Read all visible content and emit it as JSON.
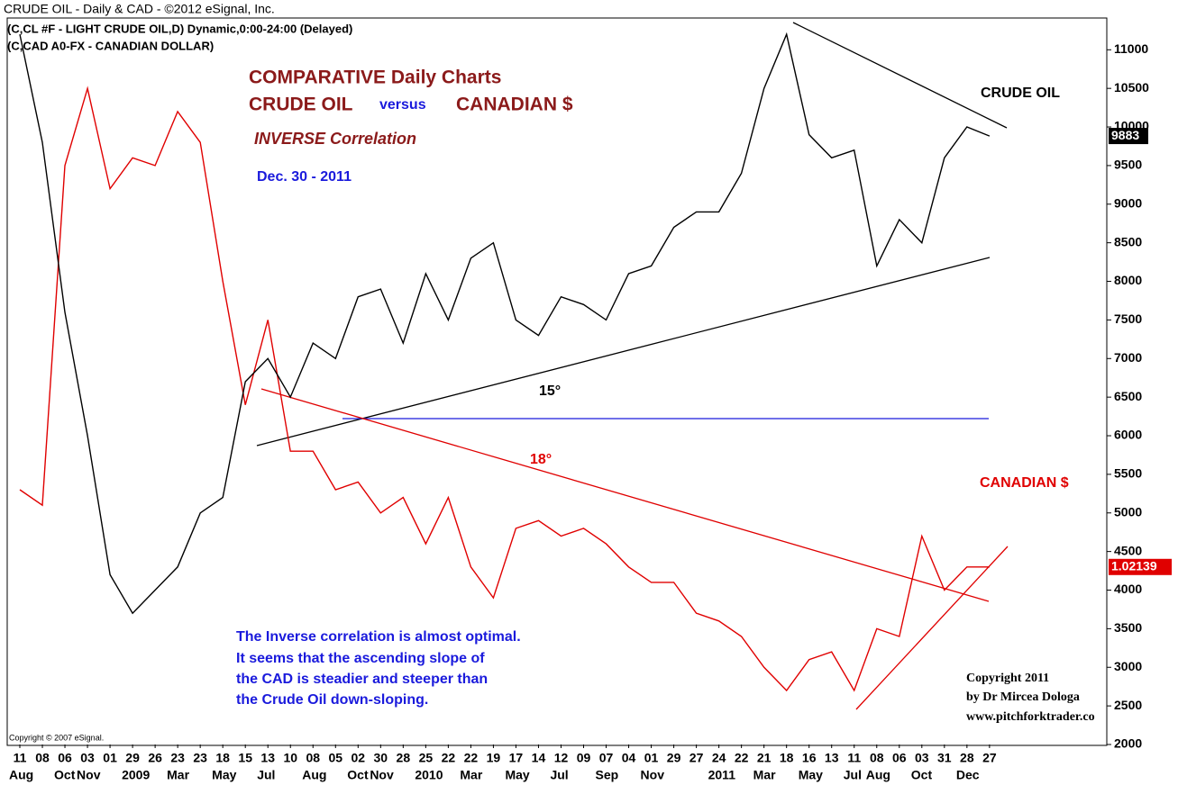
{
  "chart_data": {
    "type": "line",
    "title": "CRUDE OIL - Daily & CAD - ©2012 eSignal, Inc.",
    "subtitles": [
      "(C,CL #F - LIGHT CRUDE OIL,D) Dynamic,0:00-24:00 (Delayed)",
      "(C,CAD A0-FX - CANADIAN DOLLAR)"
    ],
    "annotations": {
      "headline": "COMPARATIVE Daily Charts",
      "headline_left": "CRUDE OIL",
      "headline_mid": "versus",
      "headline_right": "CANADIAN $",
      "correlation": "INVERSE Correlation",
      "date": "Dec. 30 - 2011",
      "angle_oil": "15°",
      "angle_cad": "18°",
      "note": [
        "The Inverse correlation is almost optimal.",
        "It seems that the ascending slope of",
        "the CAD is steadier and steeper  than",
        "the Crude Oil down-sloping."
      ],
      "author": [
        "Copyright 2011",
        "by Dr Mircea Dologa",
        "www.pitchforktrader.co"
      ],
      "vendor": "Copyright © 2007 eSignal."
    },
    "categories": [
      "11",
      "08",
      "06",
      "03",
      "01",
      "29",
      "26",
      "23",
      "23",
      "18",
      "15",
      "13",
      "10",
      "08",
      "05",
      "02",
      "30",
      "28",
      "25",
      "22",
      "22",
      "19",
      "17",
      "14",
      "12",
      "09",
      "07",
      "04",
      "01",
      "29",
      "27",
      "24",
      "22",
      "21",
      "18",
      "16",
      "13",
      "11",
      "08",
      "06",
      "03",
      "31",
      "28",
      "27"
    ],
    "category_groups": [
      "Aug",
      null,
      "Oct",
      "Nov",
      null,
      "2009",
      null,
      "Mar",
      null,
      "May",
      null,
      "Jul",
      null,
      "Aug",
      null,
      "Oct",
      "Nov",
      null,
      "2010",
      null,
      "Mar",
      null,
      "May",
      null,
      "Jul",
      null,
      "Sep",
      null,
      "Nov",
      null,
      null,
      "2011",
      null,
      "Mar",
      null,
      "May",
      null,
      "Jul",
      "Aug",
      null,
      "Oct",
      null,
      "Dec",
      null
    ],
    "series": [
      {
        "name": "CRUDE OIL",
        "color": "#000000",
        "last_label": "9883",
        "values": [
          11200,
          9800,
          7600,
          6000,
          4200,
          3700,
          4000,
          4300,
          5000,
          5200,
          6700,
          7000,
          6500,
          7200,
          7000,
          7800,
          7900,
          7200,
          8100,
          7500,
          8300,
          8500,
          7500,
          7300,
          7800,
          7700,
          7500,
          8100,
          8200,
          8700,
          8900,
          8900,
          9400,
          10500,
          11200,
          9900,
          9600,
          9700,
          8200,
          8800,
          8500,
          9600,
          10000,
          9883
        ]
      },
      {
        "name": "CANADIAN $",
        "color": "#e00000",
        "last_label": "1.02139",
        "values": [
          5300,
          5100,
          9500,
          10500,
          9200,
          9600,
          9500,
          10200,
          9800,
          8000,
          6400,
          7500,
          5800,
          5800,
          5300,
          5400,
          5000,
          5200,
          4600,
          5200,
          4300,
          3900,
          4800,
          4900,
          4700,
          4800,
          4600,
          4300,
          4100,
          4100,
          3700,
          3600,
          3400,
          3000,
          2700,
          3100,
          3200,
          2700,
          3500,
          3400,
          4700,
          4000,
          4300,
          4300
        ]
      }
    ],
    "ylim": [
      2000,
      11400
    ],
    "yticks": [
      2000,
      2500,
      3000,
      3500,
      4000,
      4500,
      5000,
      5500,
      6000,
      6500,
      7000,
      7500,
      8000,
      8500,
      9000,
      9500,
      10000,
      10500,
      11000
    ],
    "grid": false
  }
}
